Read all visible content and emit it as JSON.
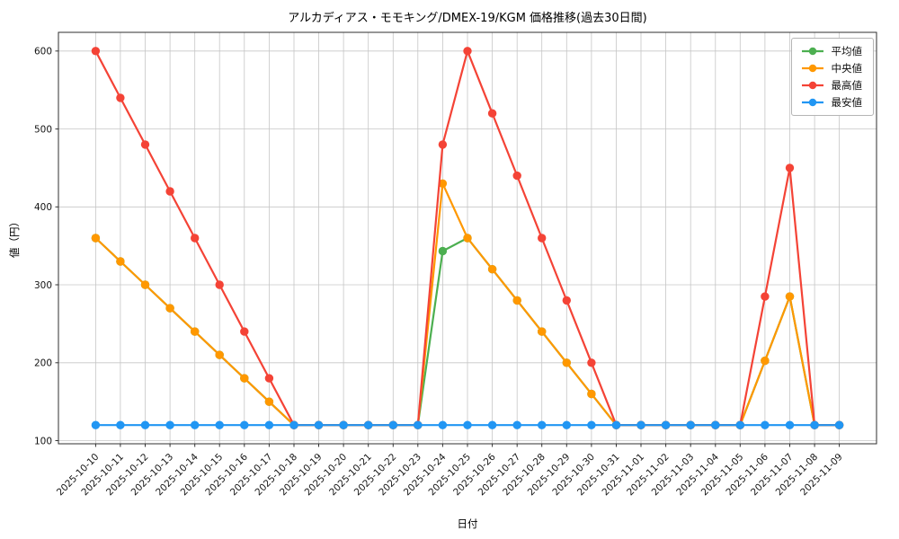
{
  "chart_data": {
    "type": "line",
    "title": "アルカディアス・モモキング/DMEX-19/KGM 価格推移(過去30日間)",
    "xlabel": "日付",
    "ylabel": "値（円）",
    "grid": true,
    "legend_position": "upper right",
    "ylim": [
      96,
      624
    ],
    "yticks": [
      100,
      200,
      300,
      400,
      500,
      600
    ],
    "categories": [
      "2025-10-10",
      "2025-10-11",
      "2025-10-12",
      "2025-10-13",
      "2025-10-14",
      "2025-10-15",
      "2025-10-16",
      "2025-10-17",
      "2025-10-18",
      "2025-10-19",
      "2025-10-20",
      "2025-10-21",
      "2025-10-22",
      "2025-10-23",
      "2025-10-24",
      "2025-10-25",
      "2025-10-26",
      "2025-10-27",
      "2025-10-28",
      "2025-10-29",
      "2025-10-30",
      "2025-10-31",
      "2025-11-01",
      "2025-11-02",
      "2025-11-03",
      "2025-11-04",
      "2025-11-05",
      "2025-11-06",
      "2025-11-07",
      "2025-11-08",
      "2025-11-09"
    ],
    "series": [
      {
        "name": "平均値",
        "color": "#4caf50",
        "values": [
          360,
          330,
          300,
          270,
          240,
          210,
          180,
          150,
          120,
          120,
          120,
          120,
          120,
          120,
          343.3,
          360,
          320,
          280,
          240,
          200,
          160,
          120,
          120,
          120,
          120,
          120,
          120,
          202.5,
          285,
          120,
          120
        ]
      },
      {
        "name": "中央値",
        "color": "#ff9800",
        "values": [
          360,
          330,
          300,
          270,
          240,
          210,
          180,
          150,
          120,
          120,
          120,
          120,
          120,
          120,
          430,
          360,
          320,
          280,
          240,
          200,
          160,
          120,
          120,
          120,
          120,
          120,
          120,
          202.5,
          285,
          120,
          120
        ]
      },
      {
        "name": "最高値",
        "color": "#f44336",
        "values": [
          600,
          540,
          480,
          420,
          360,
          300,
          240,
          180,
          120,
          120,
          120,
          120,
          120,
          120,
          480,
          600,
          520,
          440,
          360,
          280,
          200,
          120,
          120,
          120,
          120,
          120,
          120,
          285,
          450,
          120,
          120
        ]
      },
      {
        "name": "最安値",
        "color": "#2196f3",
        "values": [
          120,
          120,
          120,
          120,
          120,
          120,
          120,
          120,
          120,
          120,
          120,
          120,
          120,
          120,
          120,
          120,
          120,
          120,
          120,
          120,
          120,
          120,
          120,
          120,
          120,
          120,
          120,
          120,
          120,
          120,
          120
        ]
      }
    ]
  }
}
